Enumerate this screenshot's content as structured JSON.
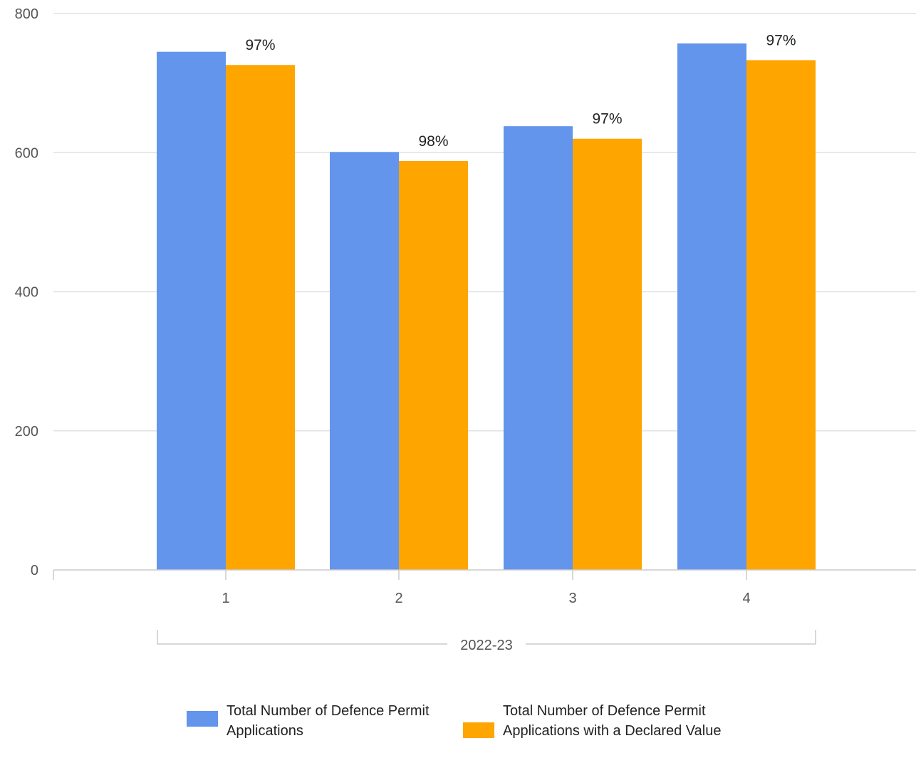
{
  "chart_data": {
    "type": "bar",
    "categories": [
      "1",
      "2",
      "3",
      "4"
    ],
    "group_label": "2022-23",
    "series": [
      {
        "name": "Total Number of Defence Permit Applications",
        "color": "#6495ED",
        "values": [
          745,
          601,
          638,
          757
        ]
      },
      {
        "name": "Total Number of Defence Permit Applications with a Declared Value",
        "color": "#FFA500",
        "values": [
          726,
          588,
          620,
          733
        ]
      }
    ],
    "data_labels": [
      "97%",
      "98%",
      "97%",
      "97%"
    ],
    "yticks": [
      0,
      200,
      400,
      600,
      800
    ],
    "ylim": [
      0,
      800
    ],
    "grid": true,
    "legend_position": "bottom",
    "title": "",
    "xlabel": "",
    "ylabel": ""
  }
}
